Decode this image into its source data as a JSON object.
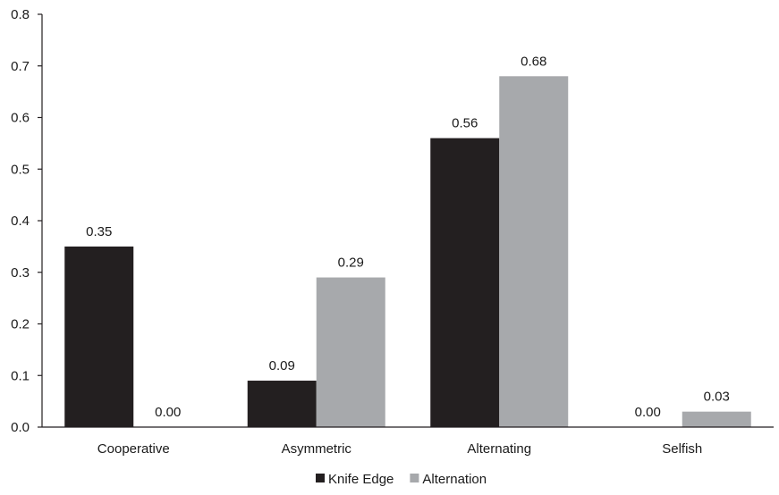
{
  "chart_data": {
    "type": "bar",
    "title": "",
    "xlabel": "",
    "ylabel": "",
    "ylim": [
      0,
      0.8
    ],
    "yticks": [
      0.0,
      0.1,
      0.2,
      0.3,
      0.4,
      0.5,
      0.6,
      0.7,
      0.8
    ],
    "ytick_labels": [
      "0.0",
      "0.1",
      "0.2",
      "0.3",
      "0.4",
      "0.5",
      "0.6",
      "0.7",
      "0.8"
    ],
    "categories": [
      "Cooperative",
      "Asymmetric",
      "Alternating",
      "Selfish"
    ],
    "grid": false,
    "legend_position": "bottom",
    "series": [
      {
        "name": "Knife Edge",
        "color": "#231f20",
        "values": [
          0.35,
          0.09,
          0.56,
          0.0
        ],
        "labels": [
          "0.35",
          "0.09",
          "0.56",
          "0.00"
        ]
      },
      {
        "name": "Alternation",
        "color": "#a7a9ac",
        "values": [
          0.0,
          0.29,
          0.68,
          0.03
        ],
        "labels": [
          "0.00",
          "0.29",
          "0.68",
          "0.03"
        ]
      }
    ]
  }
}
